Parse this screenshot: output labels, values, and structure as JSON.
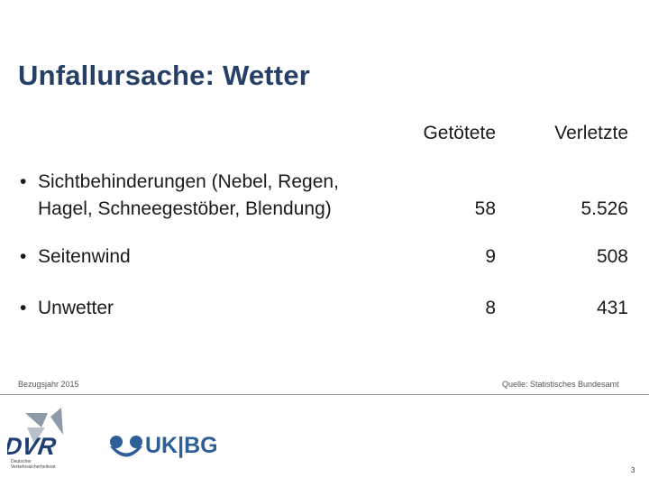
{
  "title": "Unfallursache: Wetter",
  "columns": {
    "killed": "Getötete",
    "injured": "Verletzte"
  },
  "rows": [
    {
      "label_line1": "Sichtbehinderungen (Nebel, Regen,",
      "label_line2": "Hagel, Schneegestöber, Blendung)",
      "killed": "58",
      "injured": "5.526"
    },
    {
      "label_line1": "Seitenwind",
      "killed": "9",
      "injured": "508"
    },
    {
      "label_line1": "Unwetter",
      "killed": "8",
      "injured": "431"
    }
  ],
  "bullet": "•",
  "footer": {
    "reference_year": "Bezugsjahr 2015",
    "source": "Quelle: Statistisches Bundesamt",
    "page_number": "3"
  },
  "logos": {
    "dvr": {
      "text": "DVR",
      "subtitle": "Deutscher Verkehrssicherheitsrat"
    },
    "ukbg": {
      "text": "UK|BG"
    }
  },
  "colors": {
    "title": "#253f66",
    "dvr_blue": "#1f3f73",
    "ukbg_blue": "#2f5f97"
  }
}
